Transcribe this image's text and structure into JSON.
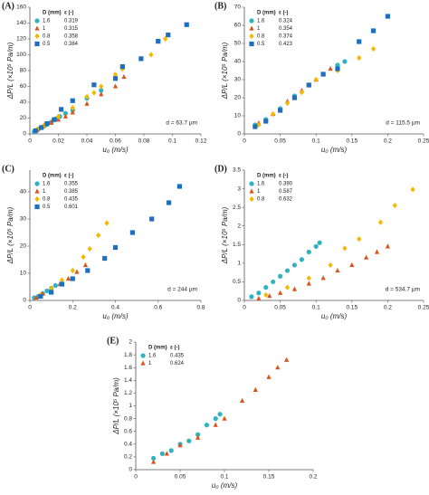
{
  "chart_data": [
    {
      "type": "scatter",
      "label": "(A)",
      "legend_header": [
        "D (mm)",
        "ε (-)"
      ],
      "annotation": "d = 63.7 μm",
      "xlabel": "u₀ (m/s)",
      "ylabel": "ΔP/L (×10⁵ Pa/m)",
      "xlim": [
        0,
        0.12
      ],
      "xticks": [
        0,
        0.02,
        0.04,
        0.06,
        0.08,
        0.1,
        0.12
      ],
      "ylim": [
        0,
        160
      ],
      "yticks": [
        0,
        20,
        40,
        60,
        80,
        100,
        120,
        140,
        160
      ],
      "series": [
        {
          "name": "1.6",
          "porosity": "0.319",
          "color": "#2fb3c0",
          "marker": "circle",
          "x": [
            0.003,
            0.006,
            0.009,
            0.012,
            0.015,
            0.018,
            0.021,
            0.025,
            0.03,
            0.04,
            0.05,
            0.065
          ],
          "values": [
            3,
            6,
            9,
            12,
            15,
            19,
            22,
            26,
            30,
            45,
            55,
            83
          ]
        },
        {
          "name": "1",
          "porosity": "0.315",
          "color": "#d9541e",
          "marker": "triangle",
          "x": [
            0.005,
            0.01,
            0.015,
            0.02,
            0.025,
            0.03,
            0.04,
            0.05,
            0.06,
            0.066
          ],
          "values": [
            5,
            10,
            14,
            18,
            22,
            27,
            38,
            50,
            60,
            72
          ]
        },
        {
          "name": "0.8",
          "porosity": "0.358",
          "color": "#f5b800",
          "marker": "diamond",
          "x": [
            0.005,
            0.01,
            0.02,
            0.03,
            0.04,
            0.045,
            0.05,
            0.06,
            0.065,
            0.085,
            0.095
          ],
          "values": [
            6,
            11,
            22,
            33,
            47,
            52,
            60,
            75,
            82,
            100,
            120
          ]
        },
        {
          "name": "0.5",
          "porosity": "0.384",
          "color": "#1f6fc0",
          "marker": "square",
          "x": [
            0.004,
            0.008,
            0.012,
            0.017,
            0.022,
            0.03,
            0.045,
            0.06,
            0.065,
            0.078,
            0.09,
            0.097,
            0.11
          ],
          "values": [
            4,
            8,
            13,
            18,
            31,
            42,
            62,
            70,
            85,
            95,
            117,
            125,
            138
          ]
        }
      ]
    },
    {
      "type": "scatter",
      "label": "(B)",
      "legend_header": [
        "D (mm)",
        "ε (-)"
      ],
      "annotation": "d = 115.5 μm",
      "xlabel": "u₀ (m/s)",
      "ylabel": "ΔP/L (×10⁵ Pa/m)",
      "xlim": [
        0,
        0.25
      ],
      "xticks": [
        0,
        0.05,
        0.1,
        0.15,
        0.2,
        0.25
      ],
      "ylim": [
        0,
        70
      ],
      "yticks": [
        0,
        10,
        20,
        30,
        40,
        50,
        60,
        70
      ],
      "series": [
        {
          "name": "1.6",
          "porosity": "0.324",
          "color": "#2fb3c0",
          "marker": "circle",
          "x": [
            0.015,
            0.03,
            0.05,
            0.07,
            0.09,
            0.11,
            0.13,
            0.14
          ],
          "values": [
            5,
            8,
            14,
            21,
            27,
            33,
            38,
            40
          ]
        },
        {
          "name": "1",
          "porosity": "0.354",
          "color": "#d9541e",
          "marker": "triangle",
          "x": [
            0.02,
            0.04,
            0.06,
            0.08,
            0.1,
            0.12
          ],
          "values": [
            6,
            11,
            18,
            24,
            30,
            36
          ]
        },
        {
          "name": "0.8",
          "porosity": "0.374",
          "color": "#f5b800",
          "marker": "diamond",
          "x": [
            0.02,
            0.04,
            0.06,
            0.08,
            0.1,
            0.13,
            0.16,
            0.18
          ],
          "values": [
            5,
            11,
            17,
            23,
            30,
            35,
            42,
            47
          ]
        },
        {
          "name": "0.5",
          "porosity": "0.423",
          "color": "#1f6fc0",
          "marker": "square",
          "x": [
            0.015,
            0.03,
            0.05,
            0.07,
            0.09,
            0.11,
            0.13,
            0.16,
            0.18,
            0.2
          ],
          "values": [
            4,
            7,
            13,
            20,
            27,
            33,
            36,
            51,
            57,
            65
          ]
        }
      ]
    },
    {
      "type": "scatter",
      "label": "(C)",
      "legend_header": [
        "D (mm)",
        "ε (-)"
      ],
      "annotation": "d = 244 μm",
      "xlabel": "u₀ (m/s)",
      "ylabel": "ΔP/L (×10⁵ Pa/m)",
      "xlim": [
        0,
        0.8
      ],
      "xticks": [
        0,
        0.2,
        0.4,
        0.6,
        0.8
      ],
      "ylim": [
        0,
        48
      ],
      "yticks": [
        0,
        10,
        20,
        30,
        40
      ],
      "series": [
        {
          "name": "1.6",
          "porosity": "0.355",
          "color": "#2fb3c0",
          "marker": "circle",
          "x": [
            0.02,
            0.04,
            0.06,
            0.08,
            0.1,
            0.12
          ],
          "values": [
            1,
            1.5,
            2.5,
            3.5,
            4.5,
            5.5
          ]
        },
        {
          "name": "1",
          "porosity": "0.385",
          "color": "#d9541e",
          "marker": "triangle",
          "x": [
            0.03,
            0.06,
            0.1,
            0.14,
            0.18,
            0.22,
            0.26
          ],
          "values": [
            1,
            2.5,
            4,
            6,
            8,
            10.5,
            13
          ]
        },
        {
          "name": "0.8",
          "porosity": "0.435",
          "color": "#f5b800",
          "marker": "diamond",
          "x": [
            0.05,
            0.1,
            0.15,
            0.2,
            0.25,
            0.28,
            0.32,
            0.36
          ],
          "values": [
            2,
            4.5,
            7.5,
            11,
            16,
            19,
            24,
            28.5
          ]
        },
        {
          "name": "0.5",
          "porosity": "0.601",
          "color": "#1f6fc0",
          "marker": "square",
          "x": [
            0.05,
            0.1,
            0.15,
            0.2,
            0.27,
            0.35,
            0.4,
            0.48,
            0.57,
            0.65,
            0.7
          ],
          "values": [
            1.5,
            3,
            6,
            8,
            11,
            15.5,
            19.5,
            25,
            30,
            36,
            42
          ]
        }
      ]
    },
    {
      "type": "scatter",
      "label": "(D)",
      "legend_header": [
        "D (mm)",
        "ε (-)"
      ],
      "annotation": "d = 534.7 μm",
      "xlabel": "u₀ (m/s)",
      "ylabel": "ΔP/L (×10⁵ Pa/m)",
      "xlim": [
        0,
        0.25
      ],
      "xticks": [
        0,
        0.05,
        0.1,
        0.15,
        0.2,
        0.25
      ],
      "ylim": [
        0,
        3.5
      ],
      "yticks": [
        0,
        0.5,
        1,
        1.5,
        2,
        2.5,
        3,
        3.5
      ],
      "series": [
        {
          "name": "1.6",
          "porosity": "0.390",
          "color": "#2fb3c0",
          "marker": "circle",
          "x": [
            0.01,
            0.02,
            0.03,
            0.04,
            0.05,
            0.06,
            0.07,
            0.08,
            0.09,
            0.1,
            0.105
          ],
          "values": [
            0.1,
            0.2,
            0.35,
            0.5,
            0.65,
            0.8,
            0.95,
            1.1,
            1.3,
            1.45,
            1.55
          ]
        },
        {
          "name": "1",
          "porosity": "0.587",
          "color": "#d9541e",
          "marker": "triangle",
          "x": [
            0.02,
            0.035,
            0.05,
            0.07,
            0.09,
            0.11,
            0.13,
            0.15,
            0.17,
            0.185,
            0.2
          ],
          "values": [
            0.05,
            0.12,
            0.2,
            0.3,
            0.45,
            0.6,
            0.8,
            0.95,
            1.15,
            1.3,
            1.45
          ]
        },
        {
          "name": "0.8",
          "porosity": "0.632",
          "color": "#f5b800",
          "marker": "diamond",
          "x": [
            0.03,
            0.06,
            0.09,
            0.12,
            0.14,
            0.16,
            0.19,
            0.21,
            0.235
          ],
          "values": [
            0.15,
            0.35,
            0.6,
            0.95,
            1.4,
            1.65,
            2.1,
            2.55,
            2.98
          ]
        }
      ]
    },
    {
      "type": "scatter",
      "label": "(E)",
      "legend_header": [
        "D (mm)",
        "ε (-)"
      ],
      "xlabel": "u₀ (m/s)",
      "ylabel": "ΔP/L (×10⁵ Pa/m)",
      "xlim": [
        0,
        0.2
      ],
      "xticks": [
        0,
        0.05,
        0.1,
        0.15,
        0.2
      ],
      "ylim": [
        0,
        2
      ],
      "yticks": [
        0,
        0.2,
        0.4,
        0.6,
        0.8,
        1,
        1.2,
        1.4,
        1.6,
        1.8,
        2
      ],
      "series": [
        {
          "name": "1.6",
          "porosity": "0.435",
          "color": "#2fb3c0",
          "marker": "circle",
          "x": [
            0.02,
            0.03,
            0.04,
            0.05,
            0.06,
            0.07,
            0.08,
            0.09,
            0.095
          ],
          "values": [
            0.18,
            0.25,
            0.3,
            0.4,
            0.45,
            0.55,
            0.7,
            0.8,
            0.87
          ]
        },
        {
          "name": "1",
          "porosity": "0.624",
          "color": "#d9541e",
          "marker": "triangle",
          "x": [
            0.02,
            0.035,
            0.05,
            0.07,
            0.09,
            0.1,
            0.12,
            0.135,
            0.15,
            0.16,
            0.17
          ],
          "values": [
            0.12,
            0.25,
            0.38,
            0.5,
            0.7,
            0.8,
            1.08,
            1.25,
            1.45,
            1.6,
            1.72
          ]
        }
      ]
    }
  ]
}
